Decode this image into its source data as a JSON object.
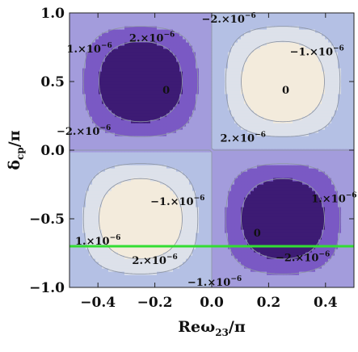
{
  "chart_data": {
    "type": "contour",
    "x_label": {
      "base": "Reω",
      "sub": "23",
      "tail": "/π"
    },
    "y_label": {
      "base": "δ",
      "sub": "cp",
      "tail": "/π"
    },
    "xlim": [
      -0.5,
      0.5
    ],
    "ylim": [
      -1.0,
      1.0
    ],
    "x_ticks": [
      -0.4,
      -0.2,
      0.0,
      0.2,
      0.4
    ],
    "x_tick_labels": [
      "−0.4",
      "−0.2",
      "0.0",
      "0.2",
      "0.4"
    ],
    "y_ticks": [
      -1.0,
      -0.5,
      0.0,
      0.5,
      1.0
    ],
    "y_tick_labels": [
      "−1.0",
      "−0.5",
      "0.0",
      "0.5",
      "1.0"
    ],
    "levels": [
      -2e-06,
      -1e-06,
      0,
      1e-06,
      2e-06
    ],
    "fill_colors": [
      "#3d1b74",
      "#7a59c4",
      "#a39cdc",
      "#b4c0e4",
      "#dde1ea",
      "#f3ebdc"
    ],
    "line_color": "#8f97a6",
    "field_amplitude": 3.3e-06,
    "field_form": "A*sin(2*pi*x)*sin(pi*y)",
    "horizontal_line": {
      "y": -0.7,
      "color": "#33dd33"
    },
    "contour_labels": [
      {
        "x": -0.43,
        "y": 0.74,
        "base": "1.×10",
        "exp": "−6"
      },
      {
        "x": -0.21,
        "y": 0.82,
        "base": "2.×10",
        "exp": "−6"
      },
      {
        "x": 0.06,
        "y": 0.96,
        "base": "−2.×10",
        "exp": "−6"
      },
      {
        "x": 0.37,
        "y": 0.72,
        "base": "−1.×10",
        "exp": "−6"
      },
      {
        "x": -0.16,
        "y": 0.44,
        "base": "0",
        "exp": ""
      },
      {
        "x": 0.26,
        "y": 0.44,
        "base": "0",
        "exp": ""
      },
      {
        "x": -0.45,
        "y": 0.14,
        "base": "−2.×10",
        "exp": "−6"
      },
      {
        "x": 0.11,
        "y": 0.09,
        "base": "2.×10",
        "exp": "−6"
      },
      {
        "x": -0.12,
        "y": -0.37,
        "base": "−1.×10",
        "exp": "−6"
      },
      {
        "x": 0.43,
        "y": -0.35,
        "base": "1.×10",
        "exp": "−6"
      },
      {
        "x": 0.16,
        "y": -0.6,
        "base": "0",
        "exp": ""
      },
      {
        "x": -0.4,
        "y": -0.66,
        "base": "1.×10",
        "exp": "−6"
      },
      {
        "x": -0.2,
        "y": -0.8,
        "base": "2.×10",
        "exp": "−6"
      },
      {
        "x": 0.32,
        "y": -0.78,
        "base": "−2.×10",
        "exp": "−6"
      },
      {
        "x": 0.01,
        "y": -0.96,
        "base": "−1.×10",
        "exp": "−6"
      }
    ]
  }
}
